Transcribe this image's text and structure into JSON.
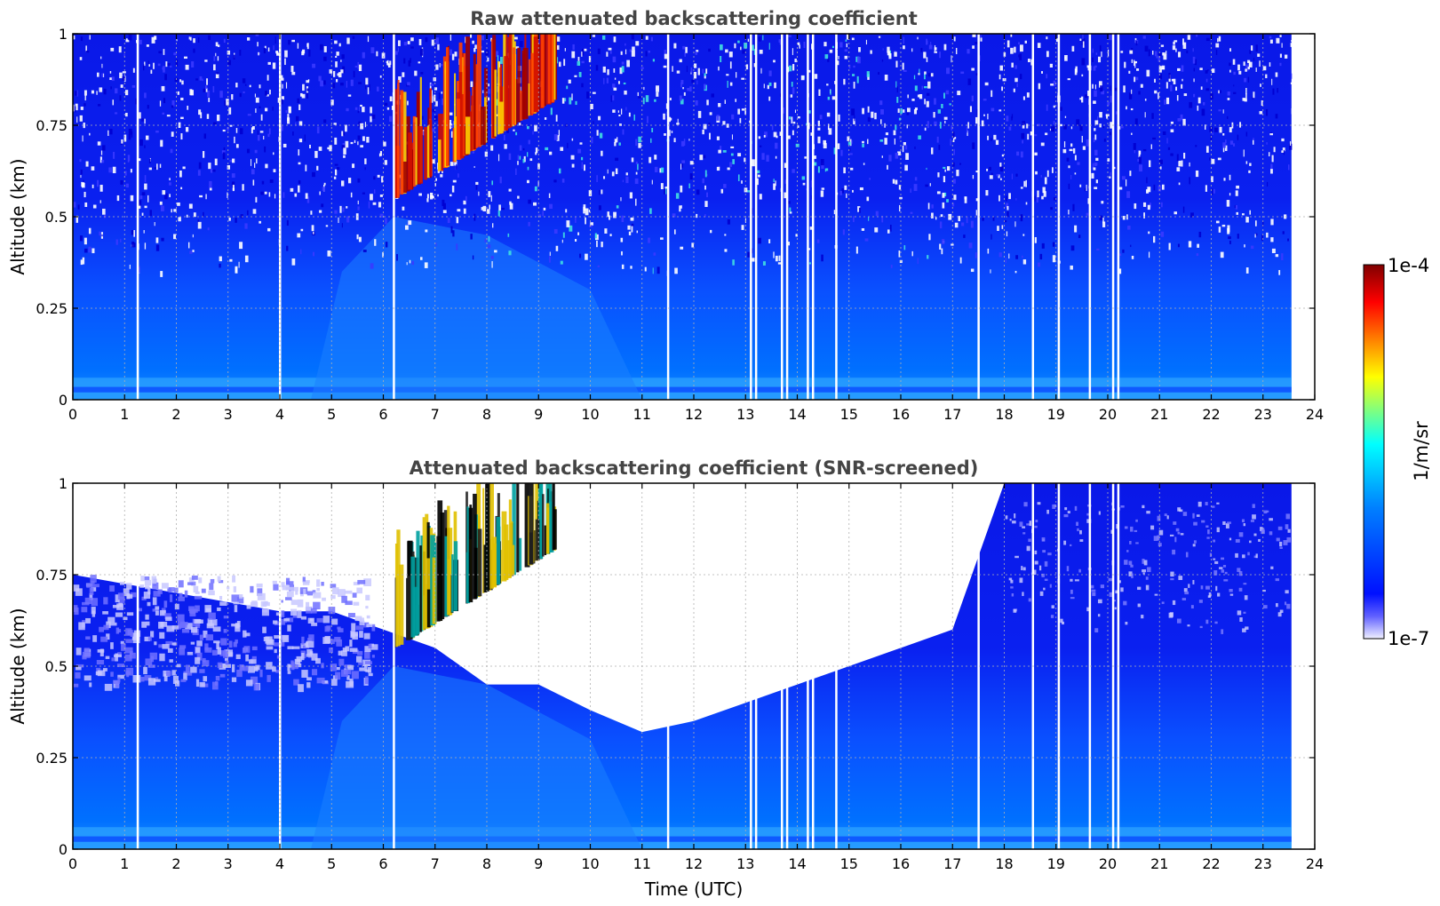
{
  "chart_data": [
    {
      "type": "heatmap",
      "title": "Raw attenuated backscattering coefficient",
      "xlabel": "",
      "ylabel": "Altitude (km)",
      "xlim": [
        0,
        24
      ],
      "ylim": [
        0,
        1
      ],
      "xticks": [
        "0",
        "1",
        "2",
        "3",
        "4",
        "5",
        "6",
        "7",
        "8",
        "9",
        "10",
        "11",
        "12",
        "13",
        "14",
        "15",
        "16",
        "17",
        "18",
        "19",
        "20",
        "21",
        "22",
        "23",
        "24"
      ],
      "yticks": [
        "0",
        "0.25",
        "0.5",
        "0.75",
        "1"
      ],
      "data_end_time": 23.55,
      "grid": true,
      "scale": "log",
      "gaps_utc": [
        1.25,
        4.0,
        6.2,
        11.5,
        13.1,
        13.2,
        13.7,
        13.8,
        14.2,
        14.3,
        14.75,
        17.5,
        18.55,
        19.05,
        19.65,
        20.1,
        20.2
      ],
      "features": [
        {
          "name": "boundary layer",
          "start": 0,
          "end": 23.55,
          "top_km": [
            0.35,
            0.5
          ]
        },
        {
          "name": "cloud",
          "start": 6.2,
          "end": 9.3,
          "base_km": [
            0.55,
            0.8
          ],
          "top_km": 1.0
        }
      ]
    },
    {
      "type": "heatmap",
      "title": "Attenuated backscattering coefficient (SNR-screened)",
      "xlabel": "Time (UTC)",
      "ylabel": "Altitude (km)",
      "xlim": [
        0,
        24
      ],
      "ylim": [
        0,
        1
      ],
      "xticks": [
        "0",
        "1",
        "2",
        "3",
        "4",
        "5",
        "6",
        "7",
        "8",
        "9",
        "10",
        "11",
        "12",
        "13",
        "14",
        "15",
        "16",
        "17",
        "18",
        "19",
        "20",
        "21",
        "22",
        "23",
        "24"
      ],
      "yticks": [
        "0",
        "0.25",
        "0.5",
        "0.75",
        "1"
      ],
      "data_end_time": 23.55,
      "grid": true,
      "scale": "log",
      "gaps_utc": [
        1.25,
        4.0,
        6.2,
        11.5,
        13.1,
        13.2,
        13.7,
        13.8,
        14.2,
        14.3,
        14.75,
        17.5,
        18.55,
        19.05,
        19.65,
        20.1,
        20.2
      ],
      "screened_top_km": [
        [
          0,
          0.75
        ],
        [
          2,
          0.7
        ],
        [
          4,
          0.65
        ],
        [
          5,
          0.65
        ],
        [
          6,
          0.6
        ],
        [
          7,
          0.55
        ],
        [
          8,
          0.45
        ],
        [
          9,
          0.45
        ],
        [
          10,
          0.38
        ],
        [
          11,
          0.32
        ],
        [
          12,
          0.35
        ],
        [
          13,
          0.4
        ],
        [
          14,
          0.45
        ],
        [
          15,
          0.5
        ],
        [
          16,
          0.55
        ],
        [
          17,
          0.6
        ],
        [
          17.5,
          0.8
        ],
        [
          18,
          1.0
        ],
        [
          23.55,
          1.0
        ]
      ],
      "features": [
        {
          "name": "cloud",
          "start": 6.2,
          "end": 9.3,
          "base_km": [
            0.55,
            0.8
          ],
          "top_km": 1.0
        }
      ]
    }
  ],
  "colorbar": {
    "label": "1/m/sr",
    "max_label": "1e-4",
    "min_label": "1e-7",
    "colormap": "jet",
    "colors": [
      "#f0f0ff",
      "#0010ff",
      "#0080ff",
      "#00ffff",
      "#ffff00",
      "#ff8000",
      "#ff0000",
      "#800000"
    ]
  }
}
